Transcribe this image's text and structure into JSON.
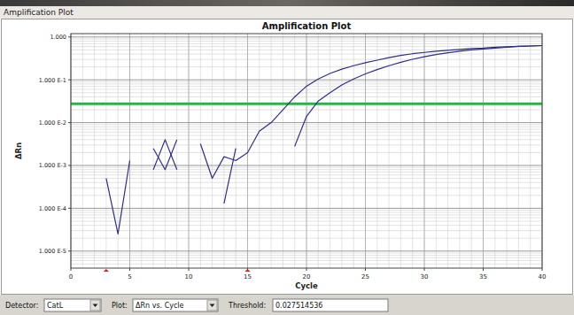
{
  "window": {
    "title": "Amplification Plot"
  },
  "controls": {
    "detector_label": "Detector:",
    "detector": "CatL",
    "plot_label": "Plot:",
    "plot": "ΔRn vs. Cycle",
    "threshold_label": "Threshold:"
  },
  "chart_data": {
    "type": "line",
    "title": "Amplification Plot",
    "x_label": "Cycle",
    "y_label": "ΔRn",
    "log": "y",
    "grid": true,
    "xlim": [
      0,
      40
    ],
    "xticks": [
      0,
      5,
      10,
      15,
      20,
      25,
      30,
      35,
      40
    ],
    "ylim": [
      4e-06,
      1.2
    ],
    "yticks": [
      {
        "value": 1,
        "label": "1.000"
      },
      {
        "value": 0.1,
        "label": "1.000 E-1"
      },
      {
        "value": 0.01,
        "label": "1.000 E-2"
      },
      {
        "value": 0.001,
        "label": "1.000 E-3"
      },
      {
        "value": 0.0001,
        "label": "1.000 E-4"
      },
      {
        "value": 1e-05,
        "label": "1.000 E-5"
      }
    ],
    "threshold": 0.027514536,
    "threshold_color": "#2db04a",
    "baseline": [
      3,
      15
    ],
    "baseline_color": "#d42020",
    "x": [
      1,
      2,
      3,
      4,
      5,
      6,
      7,
      8,
      9,
      10,
      11,
      12,
      13,
      14,
      15,
      16,
      17,
      18,
      19,
      20,
      21,
      22,
      23,
      24,
      25,
      26,
      27,
      28,
      29,
      30,
      31,
      32,
      33,
      34,
      35,
      36,
      37,
      38,
      39,
      40
    ],
    "series": [
      {
        "color": "#2e2e86",
        "values": [
          null,
          null,
          0.0005,
          2.5e-05,
          0.0013,
          null,
          0.0008,
          0.004,
          0.0008,
          null,
          0.0032,
          0.0005,
          0.0016,
          0.0013,
          0.002,
          0.0063,
          0.01,
          0.02,
          0.04,
          0.071,
          0.105,
          0.141,
          0.178,
          0.214,
          0.251,
          0.288,
          0.331,
          0.372,
          0.407,
          0.437,
          0.468,
          0.49,
          0.513,
          0.537,
          0.55,
          0.575,
          0.589,
          0.603,
          0.617,
          0.631
        ]
      },
      {
        "color": "#2e2e86",
        "values": [
          null,
          null,
          null,
          null,
          null,
          null,
          0.0025,
          0.0008,
          0.004,
          null,
          null,
          null,
          0.00013,
          0.0025,
          null,
          null,
          null,
          null,
          0.0028,
          0.014,
          0.032,
          0.05,
          0.076,
          0.105,
          0.138,
          0.174,
          0.214,
          0.257,
          0.302,
          0.347,
          0.389,
          0.427,
          0.468,
          0.501,
          0.525,
          0.55,
          0.575,
          0.603,
          0.617,
          0.631
        ]
      }
    ]
  }
}
